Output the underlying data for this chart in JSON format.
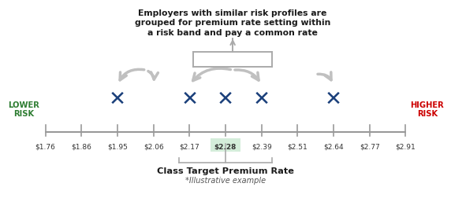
{
  "title_line1": "Employers with similar risk profiles are",
  "title_line2": "grouped for premium rate setting within",
  "title_line3": "a risk band and pay a common rate",
  "tick_labels": [
    "$1.76",
    "$1.86",
    "$1.95",
    "$2.06",
    "$2.17",
    "$2.28",
    "$2.39",
    "$2.51",
    "$2.64",
    "$2.77",
    "$2.91"
  ],
  "tick_positions": [
    0,
    1,
    2,
    3,
    4,
    5,
    6,
    7,
    8,
    9,
    10
  ],
  "cross_positions": [
    2,
    4,
    5,
    6,
    8
  ],
  "highlight_tick": 5,
  "highlight_color": "#d4edda",
  "cross_color": "#1a3f7a",
  "lower_risk_color": "#2e7d32",
  "higher_risk_color": "#cc0000",
  "arrow_color": "#c0c0c0",
  "bracket_color": "#aaaaaa",
  "class_target_label": "Class Target Premium Rate",
  "illustrative_label": "*Illustrative example",
  "lower_risk_text": "LOWER\nRISK",
  "higher_risk_text": "HIGHER\nRISK",
  "background_color": "#ffffff"
}
